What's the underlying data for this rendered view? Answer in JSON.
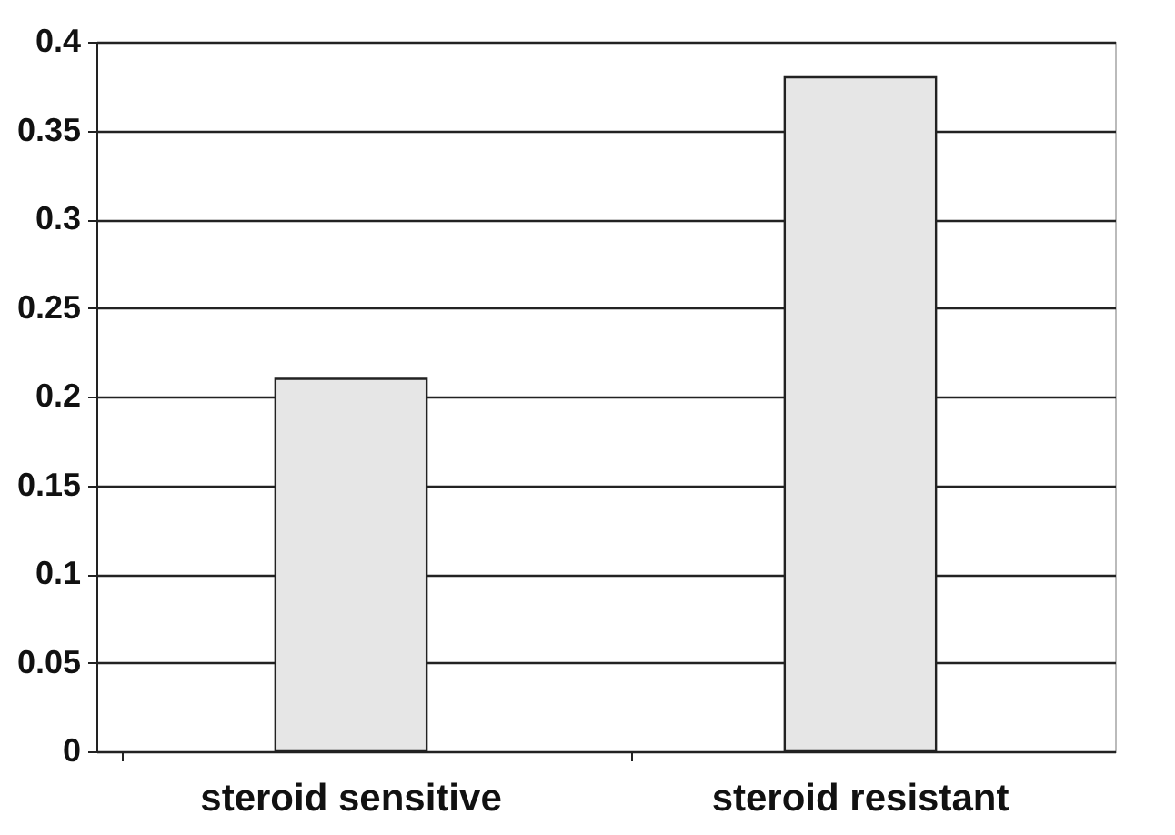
{
  "chart_data": {
    "type": "bar",
    "categories": [
      "steroid sensitive",
      "steroid resistant"
    ],
    "values": [
      0.21,
      0.38
    ],
    "color": "#e6e6e6",
    "ylim": [
      0,
      0.4
    ],
    "yticks": [
      0,
      0.05,
      0.1,
      0.15,
      0.2,
      0.25,
      0.3,
      0.35,
      0.4
    ],
    "grid": "y"
  }
}
